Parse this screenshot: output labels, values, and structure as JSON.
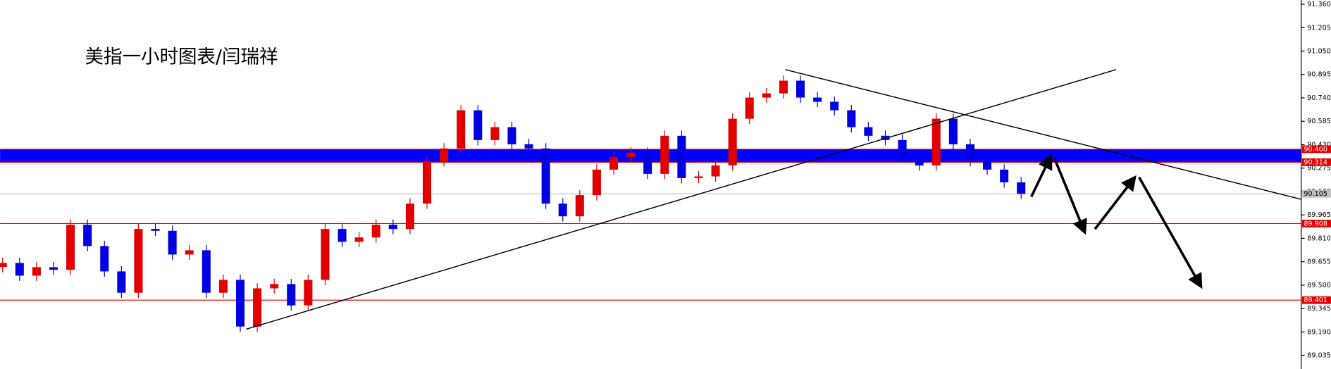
{
  "chart_data": {
    "type": "candlestick",
    "title": "美指一小时图表/闫瑞祥",
    "up_color": "#e00000",
    "down_color": "#0000e0",
    "ylim": [
      88.945,
      91.388
    ],
    "yticks": [
      {
        "value": 91.36,
        "label": "91.360"
      },
      {
        "value": 91.205,
        "label": "91.205"
      },
      {
        "value": 91.05,
        "label": "91.050"
      },
      {
        "value": 90.895,
        "label": "90.895"
      },
      {
        "value": 90.74,
        "label": "90.740"
      },
      {
        "value": 90.585,
        "label": "90.585"
      },
      {
        "value": 90.43,
        "label": "90.430"
      },
      {
        "value": 90.275,
        "label": "90.275"
      },
      {
        "value": 90.12,
        "label": "90.120"
      },
      {
        "value": 89.965,
        "label": "89.965"
      },
      {
        "value": 89.81,
        "label": "89.810"
      },
      {
        "value": 89.655,
        "label": "89.655"
      },
      {
        "value": 89.5,
        "label": "89.500"
      },
      {
        "value": 89.345,
        "label": "89.345"
      },
      {
        "value": 89.19,
        "label": "89.190"
      },
      {
        "value": 89.035,
        "label": "89.035"
      }
    ],
    "open": [
      89.62,
      89.647,
      89.563,
      89.619,
      89.602,
      89.9,
      89.759,
      89.591,
      89.45,
      89.872,
      89.86,
      89.703,
      89.731,
      89.45,
      89.535,
      89.226,
      89.479,
      89.507,
      89.366,
      89.535,
      89.872,
      89.787,
      89.816,
      89.9,
      89.872,
      90.04,
      90.321,
      90.405,
      90.658,
      90.461,
      90.546,
      90.433,
      90.405,
      90.04,
      89.956,
      90.096,
      90.265,
      90.349,
      90.377,
      90.237,
      90.489,
      90.209,
      90.22,
      90.293,
      90.602,
      90.742,
      90.77,
      90.854,
      90.742,
      90.714,
      90.658,
      90.546,
      90.489,
      90.461,
      90.349,
      90.293,
      90.602,
      90.433,
      90.321,
      90.265,
      90.181
    ],
    "high": [
      89.682,
      89.682,
      89.654,
      89.654,
      89.935,
      89.935,
      89.794,
      89.626,
      89.907,
      89.907,
      89.895,
      89.766,
      89.766,
      89.57,
      89.57,
      89.514,
      89.542,
      89.542,
      89.57,
      89.907,
      89.907,
      89.851,
      89.935,
      89.935,
      90.075,
      90.356,
      90.44,
      90.693,
      90.693,
      90.581,
      90.581,
      90.468,
      90.44,
      90.075,
      90.131,
      90.3,
      90.384,
      90.412,
      90.412,
      90.524,
      90.524,
      90.255,
      90.328,
      90.637,
      90.777,
      90.805,
      90.889,
      90.889,
      90.777,
      90.749,
      90.693,
      90.581,
      90.524,
      90.496,
      90.384,
      90.637,
      90.637,
      90.468,
      90.356,
      90.3,
      90.216
    ],
    "low": [
      89.585,
      89.528,
      89.528,
      89.567,
      89.567,
      89.724,
      89.556,
      89.415,
      89.415,
      89.825,
      89.668,
      89.668,
      89.415,
      89.415,
      89.191,
      89.191,
      89.444,
      89.331,
      89.331,
      89.5,
      89.752,
      89.752,
      89.781,
      89.837,
      89.837,
      90.005,
      90.286,
      90.37,
      90.426,
      90.426,
      90.398,
      90.37,
      90.005,
      89.921,
      89.921,
      90.061,
      90.23,
      90.314,
      90.202,
      90.202,
      90.174,
      90.174,
      90.185,
      90.258,
      90.567,
      90.707,
      90.735,
      90.707,
      90.679,
      90.623,
      90.511,
      90.454,
      90.426,
      90.314,
      90.258,
      90.258,
      90.398,
      90.286,
      90.23,
      90.146,
      90.07
    ],
    "close": [
      89.647,
      89.563,
      89.619,
      89.602,
      89.9,
      89.759,
      89.591,
      89.45,
      89.872,
      89.86,
      89.703,
      89.731,
      89.45,
      89.535,
      89.226,
      89.479,
      89.507,
      89.366,
      89.535,
      89.872,
      89.787,
      89.816,
      89.9,
      89.872,
      90.04,
      90.321,
      90.405,
      90.658,
      90.461,
      90.546,
      90.433,
      90.405,
      90.04,
      89.956,
      90.096,
      90.265,
      90.349,
      90.377,
      90.237,
      90.489,
      90.209,
      90.22,
      90.293,
      90.602,
      90.742,
      90.77,
      90.854,
      90.742,
      90.714,
      90.658,
      90.546,
      90.489,
      90.461,
      90.349,
      90.293,
      90.602,
      90.433,
      90.321,
      90.265,
      90.181,
      90.105
    ],
    "band_color": "#0000ff",
    "levels": [
      {
        "value": 90.4,
        "label": "90.400",
        "color": "#e00000"
      },
      {
        "value": 90.314,
        "label": "90.314",
        "color": "#e00000"
      },
      {
        "value": 90.105,
        "label": "90.105",
        "color": "#c0c0c0"
      },
      {
        "value": 89.908,
        "label": "89.908",
        "color": "#e00000"
      },
      {
        "value": 89.401,
        "label": "89.401",
        "color": "#e00000"
      }
    ]
  }
}
